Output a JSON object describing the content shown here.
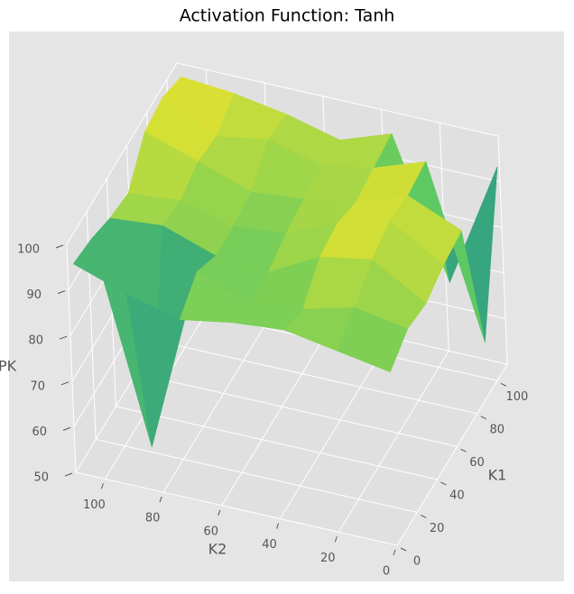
{
  "chart_data": {
    "type": "surface3d",
    "title": "Activation Function: Tanh",
    "xlabel": "K1",
    "ylabel": "K2",
    "zlabel": "PK",
    "x": [
      0,
      18,
      36,
      54,
      72,
      90,
      108
    ],
    "y": [
      0,
      18,
      36,
      54,
      72,
      90,
      108
    ],
    "z": [
      [
        88,
        90,
        92,
        91,
        89,
        92,
        96
      ],
      [
        91,
        93,
        90,
        88,
        93,
        52,
        95
      ],
      [
        90,
        97,
        95,
        89,
        90,
        94,
        93
      ],
      [
        92,
        99,
        96,
        91,
        90,
        93,
        92
      ],
      [
        93,
        98,
        94,
        92,
        91,
        95,
        99
      ],
      [
        62,
        99,
        95,
        93,
        96,
        94,
        100
      ],
      [
        94,
        66,
        96,
        92,
        95,
        97,
        98
      ]
    ],
    "colormap": "viridis",
    "xlim": [
      0,
      110
    ],
    "ylim": [
      0,
      110
    ],
    "zlim": [
      50,
      100
    ],
    "xticks": [
      0,
      20,
      40,
      60,
      80,
      100
    ],
    "yticks": [
      0,
      20,
      40,
      60,
      80,
      100
    ],
    "zticks": [
      50,
      60,
      70,
      80,
      90,
      100
    ],
    "grid": true
  }
}
